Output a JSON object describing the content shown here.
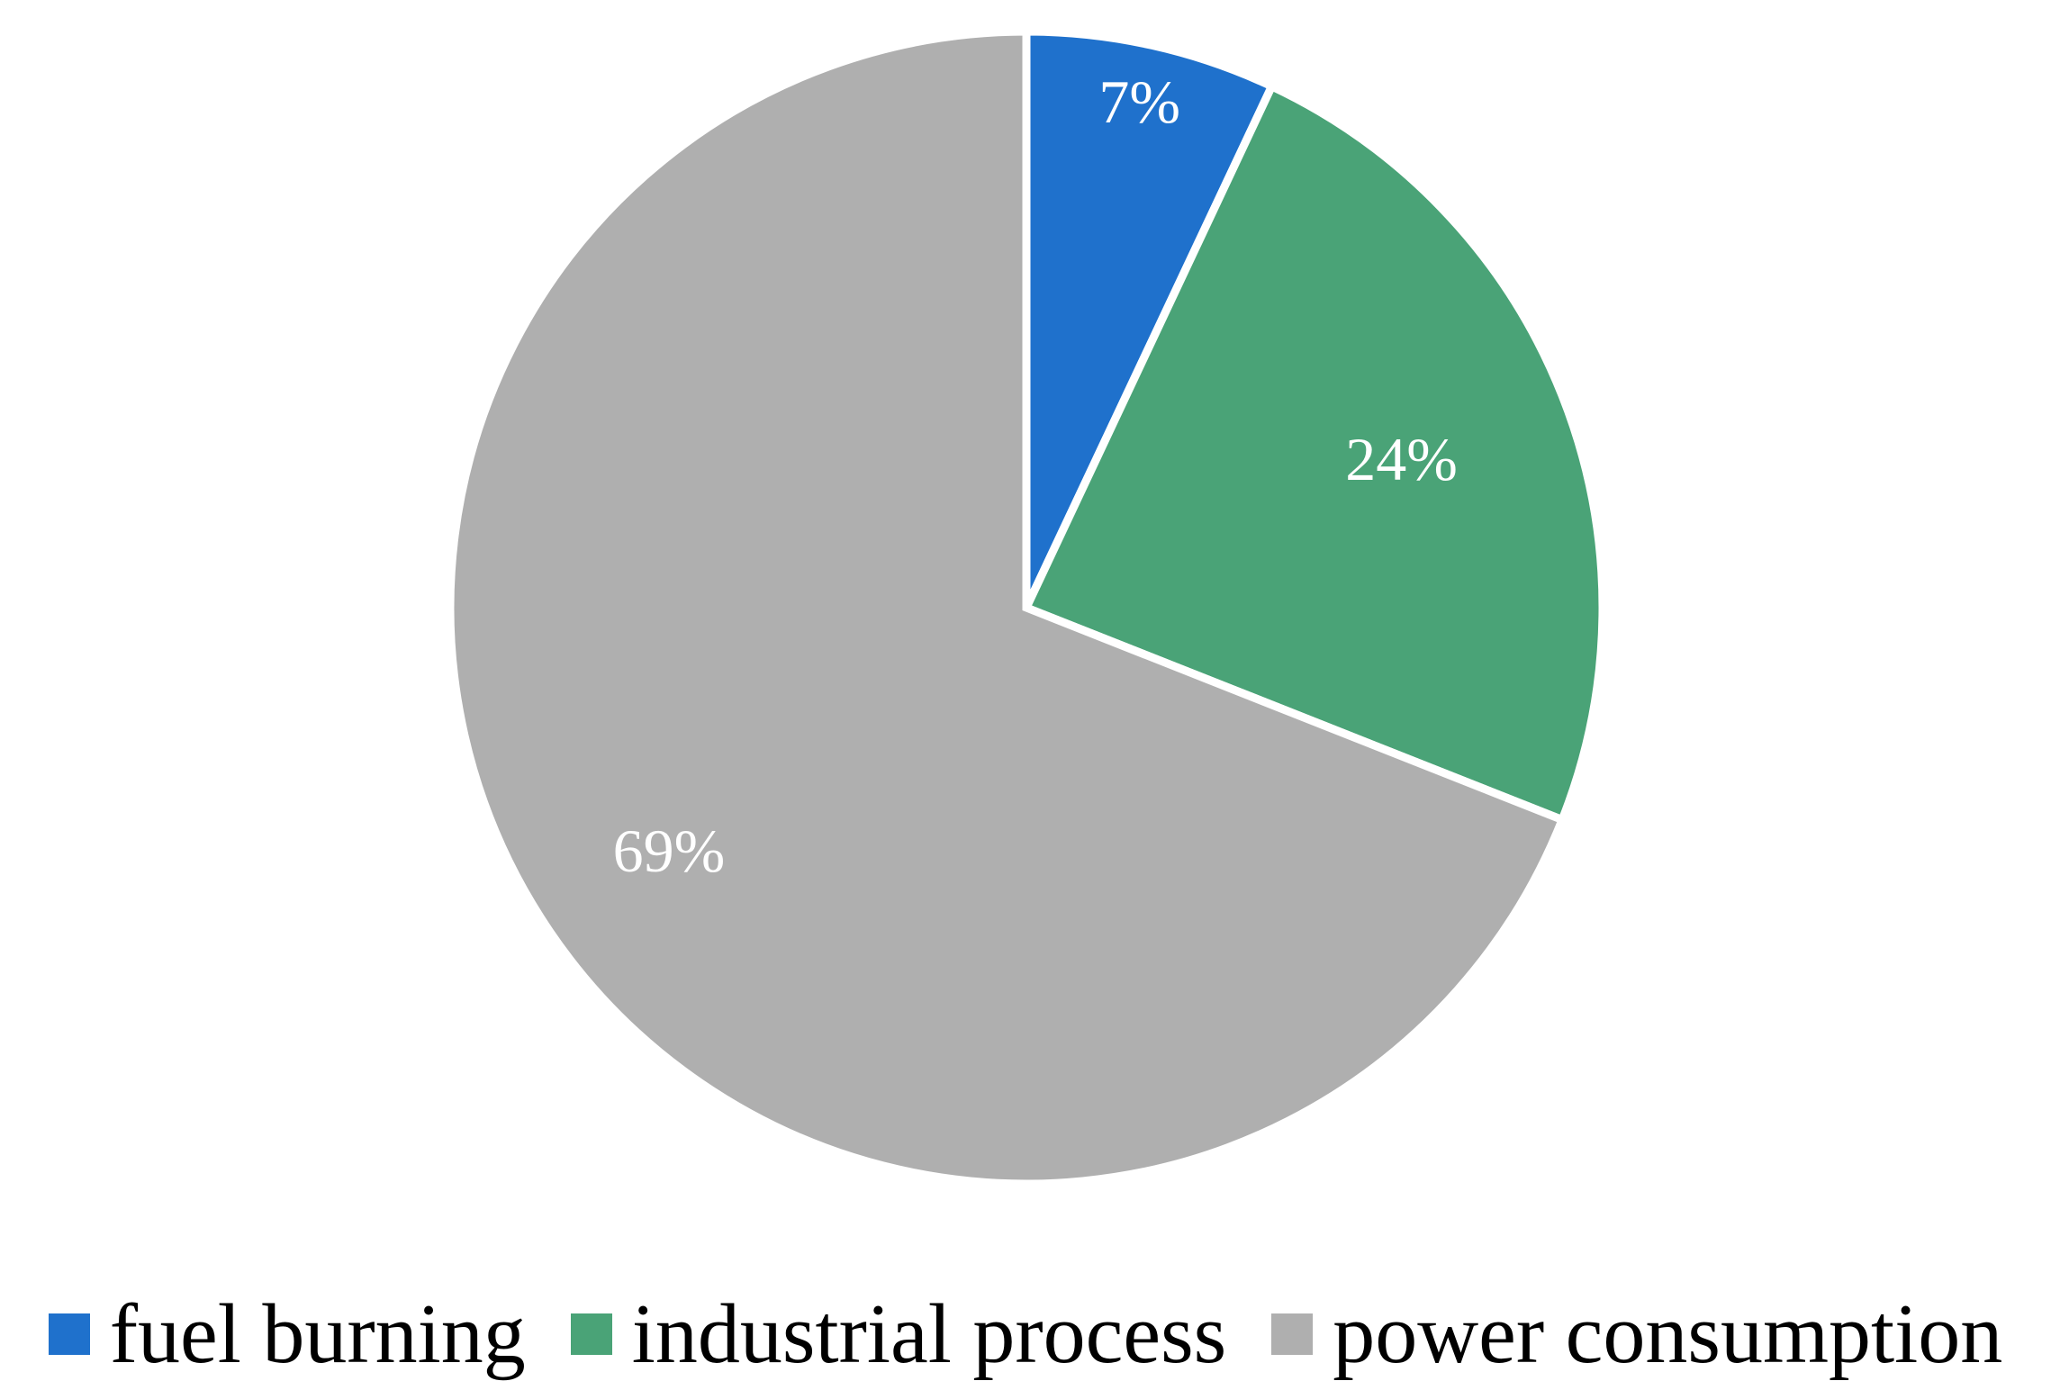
{
  "chart_data": {
    "type": "pie",
    "categories": [
      "fuel burning",
      "industrial process",
      "power consumption"
    ],
    "values": [
      7,
      24,
      69
    ],
    "data_labels": [
      "7%",
      "24%",
      "69%"
    ],
    "colors": [
      "#1F71CC",
      "#4AA377",
      "#AFAFAF"
    ],
    "start_angle_deg": 0,
    "direction": "clockwise",
    "legend_position": "bottom",
    "title": ""
  }
}
